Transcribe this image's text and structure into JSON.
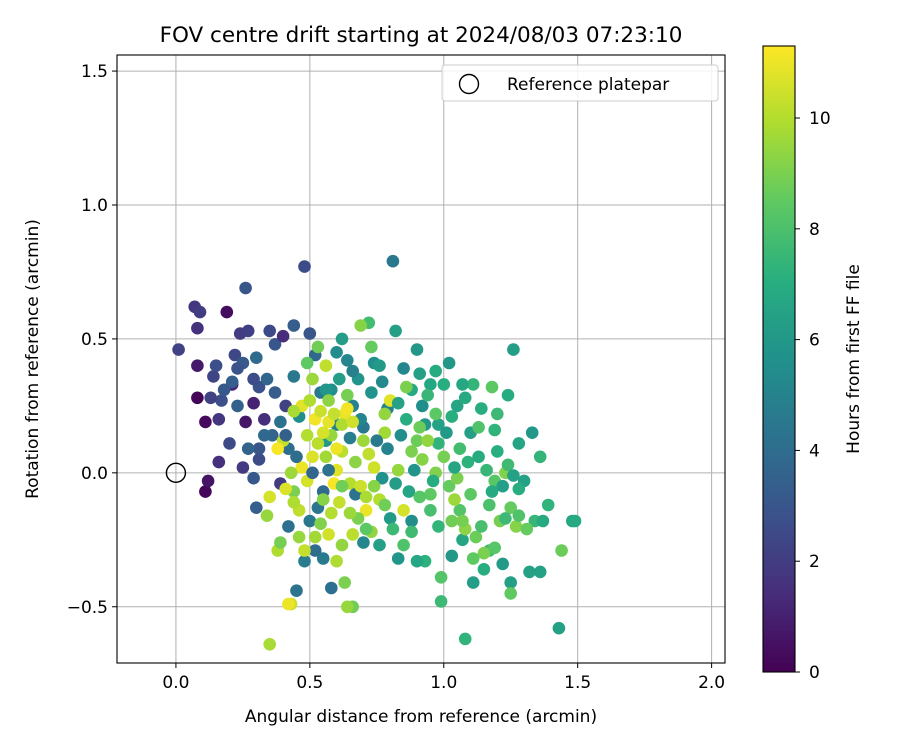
{
  "chart_data": {
    "type": "scatter",
    "title": "FOV centre drift starting at 2024/08/03 07:23:10",
    "xlabel": "Angular distance from reference (arcmin)",
    "ylabel": "Rotation from reference (arcmin)",
    "xlim": [
      -0.22,
      2.05
    ],
    "ylim": [
      -0.71,
      1.56
    ],
    "xticks": [
      0.0,
      0.5,
      1.0,
      1.5,
      2.0
    ],
    "xtick_labels": [
      "0.0",
      "0.5",
      "1.0",
      "1.5",
      "2.0"
    ],
    "yticks": [
      -0.5,
      0.0,
      0.5,
      1.0,
      1.5
    ],
    "ytick_labels": [
      "−0.5",
      "0.0",
      "0.5",
      "1.0",
      "1.5"
    ],
    "grid": true,
    "legend": {
      "position": "top-right",
      "entries": [
        "Reference platepar"
      ]
    },
    "reference_point": {
      "label": "Reference platepar",
      "x": 0.0,
      "y": 0.0,
      "marker": "open-circle"
    },
    "colorbar": {
      "label": "Hours from first FF file",
      "colormap": "viridis",
      "range": [
        0,
        11.3
      ],
      "ticks": [
        0,
        2,
        4,
        6,
        8,
        10
      ],
      "tick_labels": [
        "0",
        "2",
        "4",
        "6",
        "8",
        "10"
      ]
    },
    "points": [
      [
        0.11,
        -0.07,
        0.2
      ],
      [
        0.12,
        -0.03,
        0.6
      ],
      [
        0.08,
        0.28,
        0.1
      ],
      [
        0.11,
        0.19,
        0.3
      ],
      [
        0.07,
        0.62,
        1.8
      ],
      [
        0.09,
        0.6,
        2.0
      ],
      [
        0.08,
        0.54,
        1.6
      ],
      [
        0.19,
        0.6,
        0.4
      ],
      [
        0.01,
        0.46,
        2.2
      ],
      [
        0.16,
        0.04,
        1.5
      ],
      [
        0.08,
        0.4,
        0.8
      ],
      [
        0.14,
        0.36,
        2.3
      ],
      [
        0.17,
        0.27,
        2.7
      ],
      [
        0.16,
        0.2,
        1.8
      ],
      [
        0.21,
        0.33,
        1.2
      ],
      [
        0.22,
        0.44,
        2.4
      ],
      [
        0.24,
        0.52,
        2.0
      ],
      [
        0.26,
        0.69,
        3.0
      ],
      [
        0.27,
        0.53,
        2.1
      ],
      [
        0.25,
        0.41,
        3.2
      ],
      [
        0.29,
        0.26,
        1.1
      ],
      [
        0.26,
        0.19,
        0.7
      ],
      [
        0.25,
        0.02,
        1.9
      ],
      [
        0.23,
        0.25,
        3.5
      ],
      [
        0.3,
        0.43,
        3.9
      ],
      [
        0.31,
        0.32,
        2.8
      ],
      [
        0.33,
        0.2,
        1.5
      ],
      [
        0.35,
        0.53,
        2.5
      ],
      [
        0.37,
        0.48,
        3.0
      ],
      [
        0.34,
        0.35,
        3.7
      ],
      [
        0.36,
        0.14,
        3.6
      ],
      [
        0.31,
        0.05,
        2.6
      ],
      [
        0.29,
        -0.02,
        3.1
      ],
      [
        0.3,
        -0.13,
        3.4
      ],
      [
        0.4,
        0.51,
        1.4
      ],
      [
        0.41,
        0.25,
        2.2
      ],
      [
        0.42,
        0.09,
        4.0
      ],
      [
        0.44,
        0.55,
        3.3
      ],
      [
        0.48,
        0.77,
        2.6
      ],
      [
        0.5,
        0.52,
        3.0
      ],
      [
        0.44,
        0.36,
        4.5
      ],
      [
        0.46,
        0.21,
        5.5
      ],
      [
        0.39,
        -0.04,
        2.0
      ],
      [
        0.42,
        -0.2,
        4.1
      ],
      [
        0.45,
        -0.44,
        4.3
      ],
      [
        0.52,
        0.44,
        3.8
      ],
      [
        0.54,
        0.3,
        4.5
      ],
      [
        0.56,
        0.12,
        6.0
      ],
      [
        0.58,
        0.31,
        5.5
      ],
      [
        0.6,
        0.18,
        4.9
      ],
      [
        0.62,
        0.5,
        6.2
      ],
      [
        0.64,
        0.42,
        5.2
      ],
      [
        0.66,
        0.25,
        5.0
      ],
      [
        0.68,
        0.35,
        5.8
      ],
      [
        0.7,
        0.17,
        4.5
      ],
      [
        0.72,
        0.56,
        7.8
      ],
      [
        0.74,
        0.41,
        5.6
      ],
      [
        0.77,
        0.34,
        5.3
      ],
      [
        0.79,
        0.24,
        5.0
      ],
      [
        0.82,
        0.53,
        6.4
      ],
      [
        0.81,
        0.79,
        4.5
      ],
      [
        0.85,
        0.39,
        5.2
      ],
      [
        0.88,
        0.31,
        6.8
      ],
      [
        0.9,
        0.46,
        6.0
      ],
      [
        0.92,
        0.25,
        5.5
      ],
      [
        0.95,
        0.33,
        6.7
      ],
      [
        0.98,
        0.18,
        6.5
      ],
      [
        1.0,
        0.33,
        7.0
      ],
      [
        1.02,
        0.41,
        6.0
      ],
      [
        1.05,
        0.25,
        6.6
      ],
      [
        1.08,
        0.28,
        6.8
      ],
      [
        1.11,
        0.33,
        7.4
      ],
      [
        1.14,
        0.24,
        7.0
      ],
      [
        1.18,
        0.32,
        8.4
      ],
      [
        1.2,
        0.22,
        7.6
      ],
      [
        1.24,
        0.29,
        6.9
      ],
      [
        1.26,
        0.46,
        6.3
      ],
      [
        1.28,
        0.11,
        6.6
      ],
      [
        1.33,
        0.15,
        6.0
      ],
      [
        1.36,
        0.06,
        7.4
      ],
      [
        1.3,
        -0.03,
        6.5
      ],
      [
        1.34,
        -0.18,
        7.5
      ],
      [
        1.37,
        -0.18,
        6.8
      ],
      [
        1.39,
        -0.12,
        7.3
      ],
      [
        1.44,
        -0.29,
        8.7
      ],
      [
        1.48,
        -0.18,
        6.7
      ],
      [
        1.49,
        -0.18,
        6.8
      ],
      [
        1.43,
        -0.58,
        6.4
      ],
      [
        1.36,
        -0.37,
        6.5
      ],
      [
        1.32,
        -0.37,
        6.4
      ],
      [
        1.25,
        -0.41,
        6.4
      ],
      [
        1.25,
        -0.45,
        8.5
      ],
      [
        1.22,
        -0.34,
        6.1
      ],
      [
        1.17,
        -0.29,
        7.8
      ],
      [
        1.15,
        -0.36,
        7.0
      ],
      [
        1.11,
        -0.41,
        6.3
      ],
      [
        1.07,
        -0.25,
        6.6
      ],
      [
        1.03,
        -0.31,
        6.0
      ],
      [
        0.99,
        -0.39,
        8.2
      ],
      [
        0.99,
        -0.48,
        7.6
      ],
      [
        1.08,
        -0.62,
        7.3
      ],
      [
        0.93,
        -0.33,
        7.2
      ],
      [
        0.9,
        -0.33,
        6.7
      ],
      [
        0.83,
        -0.32,
        5.9
      ],
      [
        0.88,
        -0.18,
        5.5
      ],
      [
        0.8,
        -0.17,
        6.1
      ],
      [
        0.76,
        -0.27,
        6.4
      ],
      [
        0.7,
        -0.26,
        5.2
      ],
      [
        0.66,
        -0.5,
        8.8
      ],
      [
        0.64,
        -0.5,
        9.5
      ],
      [
        0.63,
        -0.41,
        9.0
      ],
      [
        0.58,
        -0.43,
        4.1
      ],
      [
        0.55,
        -0.32,
        4.6
      ],
      [
        0.52,
        -0.29,
        4.0
      ],
      [
        0.48,
        -0.33,
        4.7
      ],
      [
        0.5,
        -0.18,
        4.5
      ],
      [
        0.43,
        -0.49,
        10.4
      ],
      [
        0.42,
        -0.49,
        11.0
      ],
      [
        0.35,
        -0.64,
        9.8
      ],
      [
        0.38,
        -0.29,
        9.9
      ],
      [
        0.34,
        -0.16,
        9.5
      ],
      [
        0.35,
        -0.09,
        10.6
      ],
      [
        0.44,
        -0.07,
        9.0
      ],
      [
        0.46,
        -0.14,
        10.2
      ],
      [
        0.49,
        -0.03,
        10.6
      ],
      [
        0.47,
        0.02,
        11.0
      ],
      [
        0.51,
        0.06,
        10.7
      ],
      [
        0.49,
        0.14,
        10.0
      ],
      [
        0.52,
        0.2,
        11.1
      ],
      [
        0.47,
        0.25,
        10.8
      ],
      [
        0.44,
        0.23,
        9.8
      ],
      [
        0.4,
        0.12,
        10.3
      ],
      [
        0.38,
        0.09,
        11.2
      ],
      [
        0.43,
        0.0,
        9.6
      ],
      [
        0.53,
        0.11,
        10.1
      ],
      [
        0.54,
        0.23,
        10.4
      ],
      [
        0.56,
        0.06,
        9.7
      ],
      [
        0.58,
        0.14,
        9.5
      ],
      [
        0.6,
        0.01,
        10.8
      ],
      [
        0.62,
        0.08,
        10.1
      ],
      [
        0.59,
        -0.04,
        11.2
      ],
      [
        0.61,
        -0.11,
        10.3
      ],
      [
        0.65,
        -0.04,
        10.0
      ],
      [
        0.67,
        0.04,
        9.3
      ],
      [
        0.63,
        0.22,
        11.0
      ],
      [
        0.7,
        0.12,
        9.6
      ],
      [
        0.72,
        0.07,
        10.2
      ],
      [
        0.74,
        0.02,
        10.5
      ],
      [
        0.71,
        -0.14,
        11.0
      ],
      [
        0.73,
        -0.22,
        9.4
      ],
      [
        0.76,
        -0.1,
        10.0
      ],
      [
        0.78,
        0.15,
        9.7
      ],
      [
        0.8,
        0.27,
        10.8
      ],
      [
        0.83,
        0.01,
        9.5
      ],
      [
        0.85,
        -0.14,
        10.6
      ],
      [
        0.88,
        0.08,
        9.0
      ],
      [
        0.9,
        0.12,
        8.7
      ],
      [
        0.92,
        0.05,
        9.2
      ],
      [
        0.95,
        -0.08,
        8.5
      ],
      [
        0.97,
        0.0,
        9.1
      ],
      [
        1.0,
        0.06,
        8.9
      ],
      [
        1.02,
        -0.05,
        8.6
      ],
      [
        1.05,
        -0.02,
        9.0
      ],
      [
        1.03,
        -0.18,
        8.8
      ],
      [
        1.06,
        -0.14,
        8.2
      ],
      [
        1.08,
        -0.21,
        9.3
      ],
      [
        1.1,
        -0.08,
        8.4
      ],
      [
        1.12,
        -0.24,
        8.7
      ],
      [
        1.15,
        -0.3,
        9.0
      ],
      [
        1.17,
        -0.12,
        8.0
      ],
      [
        1.19,
        -0.03,
        8.3
      ],
      [
        1.21,
        -0.18,
        8.9
      ],
      [
        1.23,
        0.0,
        9.1
      ],
      [
        1.25,
        -0.13,
        8.6
      ],
      [
        1.27,
        -0.2,
        9.2
      ],
      [
        1.09,
        0.04,
        7.2
      ],
      [
        1.13,
        0.06,
        6.9
      ],
      [
        1.16,
        0.01,
        7.5
      ],
      [
        1.18,
        -0.07,
        6.8
      ],
      [
        1.2,
        0.08,
        7.1
      ],
      [
        1.22,
        -0.05,
        6.3
      ],
      [
        1.24,
        0.03,
        7.7
      ],
      [
        1.26,
        -0.01,
        6.5
      ],
      [
        1.28,
        -0.06,
        7.0
      ],
      [
        1.1,
        0.15,
        6.4
      ],
      [
        1.06,
        0.09,
        7.8
      ],
      [
        1.04,
        0.02,
        6.6
      ],
      [
        1.01,
        0.15,
        6.1
      ],
      [
        0.98,
        0.11,
        7.3
      ],
      [
        0.96,
        -0.03,
        6.9
      ],
      [
        0.93,
        0.18,
        6.0
      ],
      [
        0.89,
        0.01,
        5.8
      ],
      [
        0.87,
        -0.07,
        6.6
      ],
      [
        0.84,
        0.14,
        5.4
      ],
      [
        0.82,
        -0.04,
        6.2
      ],
      [
        0.79,
        0.09,
        5.0
      ],
      [
        0.77,
        -0.02,
        5.7
      ],
      [
        0.75,
        0.12,
        4.6
      ],
      [
        0.69,
        0.2,
        5.1
      ],
      [
        0.67,
        -0.08,
        4.3
      ],
      [
        0.65,
        0.13,
        4.8
      ],
      [
        0.57,
        0.01,
        4.2
      ],
      [
        0.55,
        -0.07,
        3.9
      ],
      [
        0.53,
        -0.13,
        4.4
      ],
      [
        0.51,
        0.0,
        3.7
      ],
      [
        0.45,
        0.06,
        4.0
      ],
      [
        0.41,
        0.14,
        3.5
      ],
      [
        0.39,
        0.19,
        4.2
      ],
      [
        0.37,
        0.3,
        3.3
      ],
      [
        0.33,
        0.14,
        3.8
      ],
      [
        0.31,
        0.09,
        3.0
      ],
      [
        0.29,
        0.35,
        2.6
      ],
      [
        0.27,
        0.09,
        3.6
      ],
      [
        0.23,
        0.39,
        2.9
      ],
      [
        0.21,
        0.34,
        3.4
      ],
      [
        0.2,
        0.11,
        2.5
      ],
      [
        0.18,
        0.31,
        3.1
      ],
      [
        0.15,
        0.4,
        2.7
      ],
      [
        0.13,
        0.28,
        2.2
      ],
      [
        0.56,
        0.31,
        5.9
      ],
      [
        0.6,
        0.45,
        5.4
      ],
      [
        0.61,
        0.35,
        6.3
      ],
      [
        0.66,
        0.38,
        4.9
      ],
      [
        0.73,
        0.3,
        5.7
      ],
      [
        0.76,
        0.4,
        6.1
      ],
      [
        0.83,
        0.26,
        6.5
      ],
      [
        0.86,
        0.2,
        7.0
      ],
      [
        0.91,
        0.37,
        6.4
      ],
      [
        0.94,
        0.29,
        7.5
      ],
      [
        0.97,
        0.38,
        6.9
      ],
      [
        1.03,
        0.21,
        7.1
      ],
      [
        1.07,
        0.33,
        6.7
      ],
      [
        1.13,
        0.17,
        8.1
      ],
      [
        1.19,
        0.16,
        7.3
      ],
      [
        0.53,
        0.47,
        8.8
      ],
      [
        0.51,
        0.35,
        9.6
      ],
      [
        0.49,
        0.41,
        8.5
      ],
      [
        0.56,
        0.4,
        10.2
      ],
      [
        0.57,
        0.27,
        9.3
      ],
      [
        0.64,
        0.29,
        8.9
      ],
      [
        0.69,
        0.55,
        9.2
      ],
      [
        0.73,
        0.47,
        8.6
      ],
      [
        0.78,
        0.22,
        9.4
      ],
      [
        0.86,
        0.32,
        9.0
      ],
      [
        0.91,
        0.17,
        8.7
      ],
      [
        0.94,
        0.12,
        9.4
      ],
      [
        0.97,
        0.22,
        8.4
      ],
      [
        1.04,
        -0.1,
        9.6
      ],
      [
        1.07,
        -0.18,
        8.9
      ],
      [
        1.11,
        -0.32,
        8.5
      ],
      [
        1.14,
        -0.2,
        7.9
      ],
      [
        1.19,
        -0.28,
        8.3
      ],
      [
        1.23,
        -0.17,
        7.6
      ],
      [
        1.28,
        -0.16,
        8.1
      ],
      [
        1.31,
        -0.21,
        8.6
      ],
      [
        0.98,
        -0.2,
        7.4
      ],
      [
        0.95,
        -0.14,
        7.9
      ],
      [
        0.91,
        -0.09,
        8.3
      ],
      [
        0.88,
        -0.22,
        7.7
      ],
      [
        0.85,
        -0.27,
        8.1
      ],
      [
        0.81,
        -0.21,
        7.6
      ],
      [
        0.78,
        -0.12,
        8.8
      ],
      [
        0.74,
        -0.05,
        9.2
      ],
      [
        0.71,
        -0.09,
        9.8
      ],
      [
        0.68,
        -0.17,
        9.0
      ],
      [
        0.66,
        -0.23,
        10.1
      ],
      [
        0.62,
        -0.27,
        9.4
      ],
      [
        0.6,
        -0.33,
        9.9
      ],
      [
        0.57,
        -0.23,
        10.5
      ],
      [
        0.54,
        -0.19,
        9.1
      ],
      [
        0.52,
        -0.24,
        9.7
      ],
      [
        0.48,
        -0.29,
        10.3
      ],
      [
        0.46,
        -0.24,
        9.5
      ],
      [
        0.44,
        -0.11,
        9.9
      ],
      [
        0.41,
        -0.06,
        10.7
      ],
      [
        0.39,
        -0.26,
        8.9
      ],
      [
        0.55,
        -0.1,
        9.2
      ],
      [
        0.58,
        -0.15,
        10.0
      ],
      [
        0.62,
        -0.05,
        8.8
      ],
      [
        0.65,
        -0.15,
        9.6
      ],
      [
        0.69,
        -0.05,
        10.4
      ],
      [
        0.71,
        -0.21,
        8.4
      ],
      [
        0.57,
        0.19,
        10.9
      ],
      [
        0.59,
        0.22,
        10.3
      ],
      [
        0.62,
        0.18,
        9.9
      ],
      [
        0.64,
        0.24,
        11.1
      ],
      [
        0.66,
        0.19,
        10.5
      ],
      [
        0.6,
        0.09,
        11.0
      ],
      [
        0.55,
        0.15,
        10.6
      ],
      [
        0.5,
        0.27,
        9.9
      ]
    ]
  }
}
